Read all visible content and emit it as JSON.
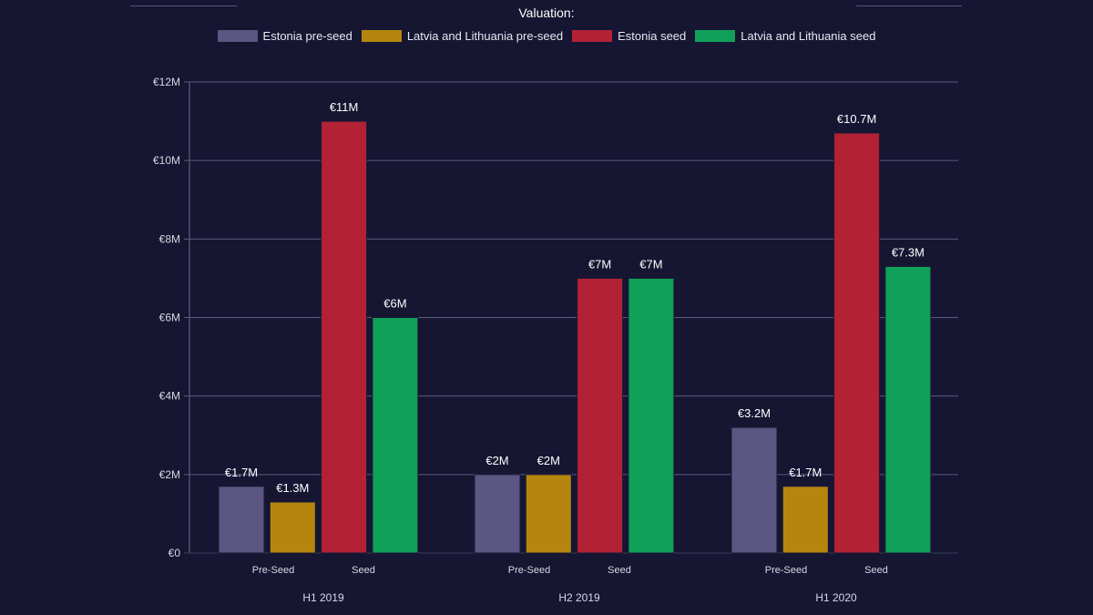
{
  "chart_data": {
    "type": "bar",
    "title": "Valuation:",
    "groups": [
      "H1 2019",
      "H2 2019",
      "H1 2020"
    ],
    "subcategories": [
      "Pre-Seed",
      "Seed"
    ],
    "ylim": [
      0,
      12
    ],
    "yticks": [
      "€0",
      "€2M",
      "€4M",
      "€6M",
      "€8M",
      "€10M",
      "€12M"
    ],
    "ytick_values": [
      0,
      2,
      4,
      6,
      8,
      10,
      12
    ],
    "unit": "€M",
    "grid": true,
    "legend_position": "top",
    "series": [
      {
        "name": "Estonia pre-seed",
        "color": "#5b5682",
        "values": [
          1.7,
          2,
          3.2
        ],
        "labels": [
          "€1.7M",
          "€2M",
          "€3.2M"
        ]
      },
      {
        "name": "Latvia and Lithuania pre-seed",
        "color": "#b5860e",
        "values": [
          1.3,
          2,
          1.7
        ],
        "labels": [
          "€1.3M",
          "€2M",
          "€1.7M"
        ]
      },
      {
        "name": "Estonia seed",
        "color": "#b22234",
        "values": [
          11,
          7,
          10.7
        ],
        "labels": [
          "€11M",
          "€7M",
          "€10.7M"
        ]
      },
      {
        "name": "Latvia and Lithuania seed",
        "color": "#10a05a",
        "values": [
          6,
          7,
          7.3
        ],
        "labels": [
          "€6M",
          "€7M",
          "€7.3M"
        ]
      }
    ]
  }
}
